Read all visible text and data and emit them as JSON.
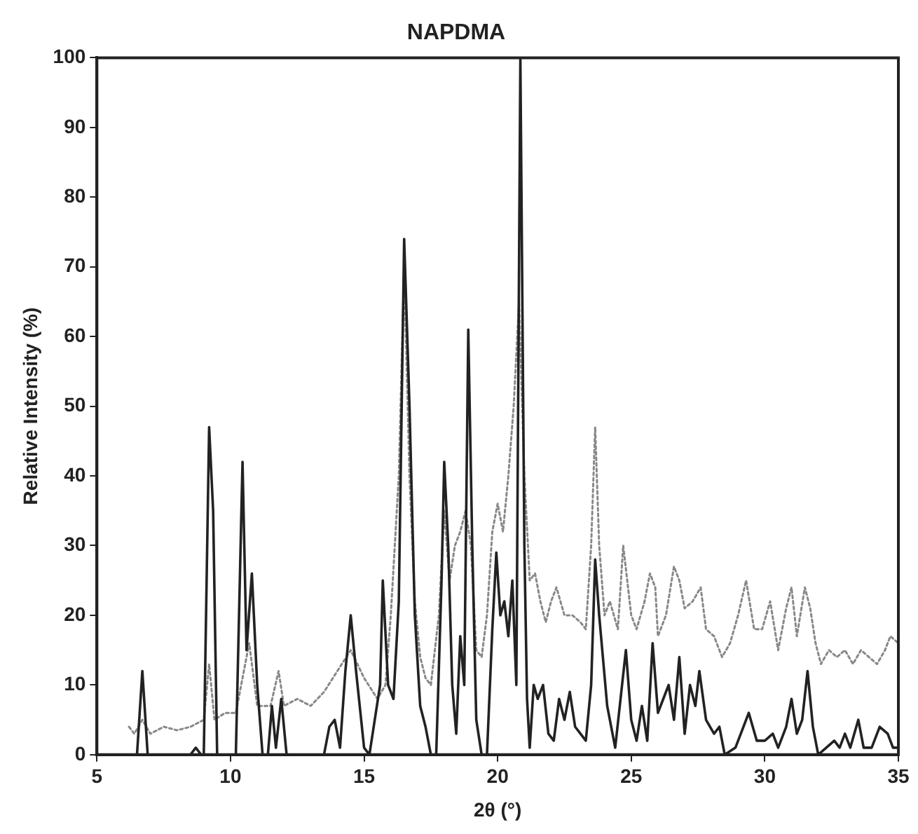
{
  "chart_data": {
    "type": "line",
    "title": "NAPDMA",
    "xlabel": "2θ (°)",
    "ylabel": "Relative Intensity (%)",
    "xlim": [
      5,
      35
    ],
    "xticks": [
      5,
      10,
      15,
      20,
      25,
      30,
      35
    ],
    "ylim": [
      0,
      100
    ],
    "yticks": [
      0,
      10,
      20,
      30,
      40,
      50,
      60,
      70,
      80,
      90,
      100
    ],
    "grid": false,
    "legend": false,
    "marker": "none",
    "series": [
      {
        "color": "#222222",
        "line_style": "solid",
        "x": [
          6.0,
          6.5,
          6.7,
          6.9,
          8.5,
          8.7,
          8.9,
          9.0,
          9.2,
          9.35,
          9.5,
          10.2,
          10.45,
          10.6,
          10.8,
          11.0,
          11.2,
          11.4,
          11.55,
          11.7,
          11.9,
          12.1,
          13.5,
          13.7,
          13.9,
          14.1,
          14.3,
          14.5,
          14.7,
          15.0,
          15.2,
          15.4,
          15.6,
          15.7,
          15.9,
          16.1,
          16.3,
          16.5,
          16.7,
          16.9,
          17.1,
          17.3,
          17.5,
          17.7,
          17.9,
          18.0,
          18.15,
          18.3,
          18.45,
          18.6,
          18.75,
          18.9,
          19.05,
          19.2,
          19.4,
          19.6,
          19.8,
          19.95,
          20.1,
          20.25,
          20.4,
          20.55,
          20.7,
          20.85,
          21.0,
          21.1,
          21.2,
          21.35,
          21.5,
          21.7,
          21.9,
          22.1,
          22.3,
          22.5,
          22.7,
          22.9,
          23.1,
          23.3,
          23.5,
          23.65,
          23.8,
          24.1,
          24.4,
          24.6,
          24.8,
          25.0,
          25.2,
          25.4,
          25.6,
          25.8,
          26.0,
          26.2,
          26.4,
          26.6,
          26.8,
          27.0,
          27.2,
          27.4,
          27.55,
          27.8,
          28.1,
          28.3,
          28.5,
          28.9,
          29.2,
          29.4,
          29.7,
          30.0,
          30.3,
          30.5,
          30.8,
          31.0,
          31.2,
          31.4,
          31.6,
          31.8,
          32.0,
          32.3,
          32.6,
          32.8,
          33.0,
          33.2,
          33.5,
          33.7,
          34.0,
          34.3,
          34.6,
          34.8,
          35.0
        ],
        "values": [
          0,
          0,
          12,
          0,
          0,
          1,
          0,
          0,
          47,
          35,
          0,
          0,
          42,
          15,
          26,
          10,
          0,
          0,
          7,
          1,
          8,
          0,
          0,
          4,
          5,
          1,
          12,
          20,
          12,
          1,
          0,
          5,
          10,
          25,
          10,
          8,
          22,
          74,
          50,
          20,
          7,
          4,
          0,
          0,
          25,
          42,
          30,
          10,
          3,
          17,
          10,
          61,
          30,
          5,
          0,
          0,
          18,
          29,
          20,
          22,
          17,
          25,
          10,
          100,
          30,
          8,
          1,
          10,
          8,
          10,
          3,
          2,
          8,
          5,
          9,
          4,
          3,
          2,
          10,
          28,
          20,
          7,
          1,
          8,
          15,
          5,
          2,
          7,
          2,
          16,
          6,
          8,
          10,
          5,
          14,
          3,
          10,
          7,
          12,
          5,
          3,
          4,
          0,
          1,
          4,
          6,
          2,
          2,
          3,
          1,
          4,
          8,
          3,
          5,
          12,
          4,
          0,
          1,
          2,
          1,
          3,
          1,
          5,
          1,
          1,
          4,
          3,
          1,
          1
        ]
      },
      {
        "color": "#888888",
        "line_style": "dotted",
        "x": [
          6.2,
          6.4,
          6.7,
          7.0,
          7.5,
          8.0,
          8.5,
          9.0,
          9.2,
          9.4,
          9.8,
          10.2,
          10.5,
          10.7,
          11.0,
          11.5,
          11.8,
          12.0,
          12.5,
          13.0,
          13.5,
          14.0,
          14.5,
          15.0,
          15.5,
          15.8,
          16.0,
          16.3,
          16.5,
          16.7,
          16.9,
          17.1,
          17.3,
          17.5,
          17.8,
          18.0,
          18.2,
          18.4,
          18.6,
          18.8,
          19.0,
          19.2,
          19.4,
          19.6,
          19.8,
          20.0,
          20.2,
          20.4,
          20.6,
          20.8,
          21.0,
          21.2,
          21.4,
          21.6,
          21.8,
          22.0,
          22.2,
          22.5,
          22.8,
          23.1,
          23.3,
          23.5,
          23.65,
          23.8,
          24.0,
          24.2,
          24.5,
          24.7,
          25.0,
          25.2,
          25.5,
          25.7,
          25.9,
          26.0,
          26.3,
          26.6,
          26.8,
          27.0,
          27.3,
          27.6,
          27.8,
          28.1,
          28.4,
          28.7,
          29.0,
          29.3,
          29.6,
          29.9,
          30.2,
          30.5,
          30.8,
          31.0,
          31.2,
          31.5,
          31.7,
          31.9,
          32.1,
          32.4,
          32.7,
          33.0,
          33.3,
          33.6,
          33.9,
          34.2,
          34.5,
          34.7,
          35.0
        ],
        "values": [
          4,
          3,
          5,
          3,
          4,
          3.5,
          4,
          5,
          13,
          5,
          6,
          6,
          12,
          16,
          7,
          7,
          12,
          7,
          8,
          7,
          9,
          12,
          15,
          11,
          8,
          10,
          20,
          40,
          70,
          40,
          22,
          14,
          11,
          10,
          20,
          35,
          25,
          30,
          32,
          35,
          30,
          15,
          14,
          20,
          32,
          36,
          32,
          40,
          50,
          65,
          40,
          25,
          26,
          22,
          19,
          22,
          24,
          20,
          20,
          19,
          18,
          30,
          47,
          30,
          20,
          22,
          18,
          30,
          20,
          18,
          22,
          26,
          24,
          17,
          20,
          27,
          25,
          21,
          22,
          24,
          18,
          17,
          14,
          16,
          20,
          25,
          18,
          18,
          22,
          15,
          21,
          24,
          17,
          24,
          21,
          16,
          13,
          15,
          14,
          15,
          13,
          15,
          14,
          13,
          15,
          17,
          16
        ]
      }
    ]
  }
}
